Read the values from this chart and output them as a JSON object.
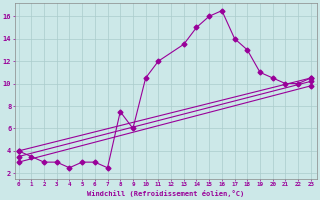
{
  "line1_x": [
    0,
    1,
    2,
    3,
    4,
    5,
    6,
    7,
    8,
    9,
    10,
    11,
    13,
    14,
    15,
    16,
    17,
    18,
    19,
    20,
    21,
    22,
    23
  ],
  "line1_y": [
    4.0,
    3.5,
    3.0,
    3.0,
    2.5,
    3.0,
    3.0,
    2.5,
    7.5,
    6.0,
    10.5,
    12.0,
    13.5,
    15.0,
    16.0,
    16.5,
    14.0,
    13.0,
    11.0,
    10.5,
    10.0,
    10.0,
    10.5
  ],
  "line2_x": [
    0,
    23
  ],
  "line2_y": [
    4.0,
    10.5
  ],
  "line3_x": [
    0,
    23
  ],
  "line3_y": [
    3.5,
    10.2
  ],
  "line4_x": [
    0,
    23
  ],
  "line4_y": [
    3.0,
    9.8
  ],
  "color": "#990099",
  "bg_color": "#cce8e8",
  "grid_color": "#aacccc",
  "xlabel": "Windchill (Refroidissement éolien,°C)",
  "xticks": [
    0,
    1,
    2,
    3,
    4,
    5,
    6,
    7,
    8,
    9,
    10,
    11,
    12,
    13,
    14,
    15,
    16,
    17,
    18,
    19,
    20,
    21,
    22,
    23
  ],
  "yticks": [
    2,
    4,
    6,
    8,
    10,
    12,
    14,
    16
  ],
  "xlim": [
    -0.3,
    23.5
  ],
  "ylim": [
    1.5,
    17.2
  ],
  "marker": "D",
  "markersize": 2.5,
  "linewidth": 0.8
}
